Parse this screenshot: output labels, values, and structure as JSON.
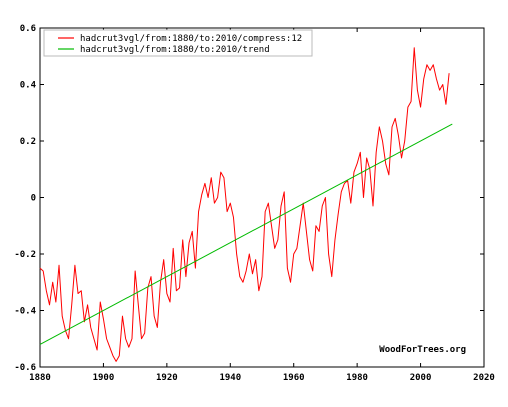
{
  "chart_data": {
    "type": "line",
    "title": "",
    "xlabel": "",
    "ylabel": "",
    "xlim": [
      1880,
      2020
    ],
    "ylim": [
      -0.6,
      0.6
    ],
    "x_ticks": [
      1880,
      1900,
      1920,
      1940,
      1960,
      1980,
      2000,
      2020
    ],
    "y_ticks": [
      -0.6,
      -0.4,
      -0.2,
      0,
      0.2,
      0.4,
      0.6
    ],
    "x_tick_labels": [
      "1880",
      "1900",
      "1920",
      "1940",
      "1960",
      "1980",
      "2000",
      "2020"
    ],
    "y_tick_labels": [
      "-0.6",
      "-0.4",
      "-0.2",
      "0",
      "0.2",
      "0.4",
      "0.6"
    ],
    "grid": false,
    "legend_position": "top-left",
    "credit": "WoodForTrees.org",
    "series": [
      {
        "name": "hadcrut3vgl/from:1880/to:2010/compress:12",
        "color": "#ff0000",
        "x": [
          1880.0,
          1881.0,
          1882.0,
          1883.0,
          1884.0,
          1885.0,
          1886.0,
          1887.0,
          1888.0,
          1889.0,
          1890.0,
          1891.0,
          1892.0,
          1893.0,
          1894.0,
          1895.0,
          1896.0,
          1897.0,
          1898.0,
          1899.0,
          1900.0,
          1901.0,
          1902.0,
          1903.0,
          1904.0,
          1905.0,
          1906.0,
          1907.0,
          1908.0,
          1909.0,
          1910.0,
          1911.0,
          1912.0,
          1913.0,
          1914.0,
          1915.0,
          1916.0,
          1917.0,
          1918.0,
          1919.0,
          1920.0,
          1921.0,
          1922.0,
          1923.0,
          1924.0,
          1925.0,
          1926.0,
          1927.0,
          1928.0,
          1929.0,
          1930.0,
          1931.0,
          1932.0,
          1933.0,
          1934.0,
          1935.0,
          1936.0,
          1937.0,
          1938.0,
          1939.0,
          1940.0,
          1941.0,
          1942.0,
          1943.0,
          1944.0,
          1945.0,
          1946.0,
          1947.0,
          1948.0,
          1949.0,
          1950.0,
          1951.0,
          1952.0,
          1953.0,
          1954.0,
          1955.0,
          1956.0,
          1957.0,
          1958.0,
          1959.0,
          1960.0,
          1961.0,
          1962.0,
          1963.0,
          1964.0,
          1965.0,
          1966.0,
          1967.0,
          1968.0,
          1969.0,
          1970.0,
          1971.0,
          1972.0,
          1973.0,
          1974.0,
          1975.0,
          1976.0,
          1977.0,
          1978.0,
          1979.0,
          1980.0,
          1981.0,
          1982.0,
          1983.0,
          1984.0,
          1985.0,
          1986.0,
          1987.0,
          1988.0,
          1989.0,
          1990.0,
          1991.0,
          1992.0,
          1993.0,
          1994.0,
          1995.0,
          1996.0,
          1997.0,
          1998.0,
          1999.0,
          2000.0,
          2001.0,
          2002.0,
          2003.0,
          2004.0,
          2005.0,
          2006.0,
          2007.0,
          2008.0,
          2009.0
        ],
        "values": [
          -0.25,
          -0.26,
          -0.33,
          -0.38,
          -0.3,
          -0.37,
          -0.24,
          -0.42,
          -0.47,
          -0.5,
          -0.38,
          -0.24,
          -0.34,
          -0.33,
          -0.44,
          -0.38,
          -0.46,
          -0.5,
          -0.54,
          -0.37,
          -0.43,
          -0.5,
          -0.53,
          -0.56,
          -0.58,
          -0.56,
          -0.42,
          -0.5,
          -0.53,
          -0.5,
          -0.26,
          -0.38,
          -0.5,
          -0.48,
          -0.32,
          -0.28,
          -0.42,
          -0.46,
          -0.3,
          -0.22,
          -0.34,
          -0.37,
          -0.18,
          -0.33,
          -0.32,
          -0.15,
          -0.28,
          -0.16,
          -0.12,
          -0.25,
          -0.05,
          0.01,
          0.05,
          0.0,
          0.07,
          -0.02,
          0.0,
          0.09,
          0.07,
          -0.05,
          -0.02,
          -0.07,
          -0.2,
          -0.28,
          -0.3,
          -0.26,
          -0.2,
          -0.27,
          -0.22,
          -0.33,
          -0.28,
          -0.05,
          -0.02,
          -0.1,
          -0.18,
          -0.15,
          -0.03,
          0.02,
          -0.25,
          -0.3,
          -0.2,
          -0.18,
          -0.1,
          -0.02,
          -0.12,
          -0.22,
          -0.26,
          -0.1,
          -0.12,
          -0.03,
          0.0,
          -0.2,
          -0.28,
          -0.15,
          -0.06,
          0.02,
          0.05,
          0.06,
          -0.02,
          0.09,
          0.12,
          0.16,
          0.0,
          0.14,
          0.1,
          -0.03,
          0.16,
          0.25,
          0.2,
          0.12,
          0.08,
          0.25,
          0.28,
          0.22,
          0.14,
          0.2,
          0.32,
          0.34,
          0.53,
          0.38,
          0.32,
          0.42,
          0.47,
          0.45,
          0.47,
          0.42,
          0.38,
          0.4,
          0.33,
          0.44
        ]
      },
      {
        "name": "hadcrut3vgl/from:1880/to:2010/trend",
        "color": "#00bb00",
        "x": [
          1880,
          2010
        ],
        "values": [
          -0.52,
          0.26
        ]
      }
    ]
  }
}
